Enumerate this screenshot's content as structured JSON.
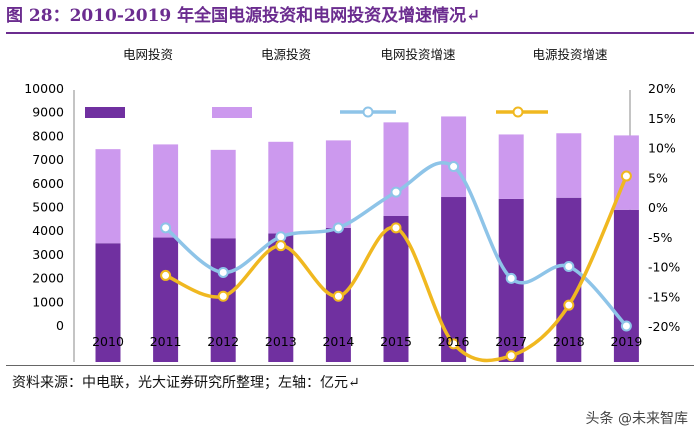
{
  "title": "图 28：2010-2019 年全国电源投资和电网投资及增速情况↵",
  "source": "资料来源：中电联，光大证券研究所整理；左轴：亿元↵",
  "watermark": "头条 @未来智库",
  "colors": {
    "grid_bar": "#7030a0",
    "power_bar": "#cc99ee",
    "grid_line": "#8ec4e8",
    "power_line": "#f0b820",
    "title": "#6b2c8f"
  },
  "chart_data": {
    "type": "bar",
    "categories": [
      "2010",
      "2011",
      "2012",
      "2013",
      "2014",
      "2015",
      "2016",
      "2017",
      "2018",
      "2019"
    ],
    "series": [
      {
        "name": "电网投资",
        "type": "bar",
        "axis": "left",
        "values": [
          3450,
          3690,
          3660,
          3860,
          4100,
          4600,
          5400,
          5320,
          5370,
          4860
        ]
      },
      {
        "name": "电源投资",
        "type": "bar",
        "axis": "left",
        "values": [
          3970,
          3930,
          3730,
          3870,
          3690,
          3950,
          3400,
          2720,
          2720,
          3140
        ]
      },
      {
        "name": "电网投资增速",
        "type": "line",
        "axis": "right",
        "values": [
          null,
          -3.5,
          -11,
          -5,
          -3.5,
          2.5,
          6.8,
          -12,
          -10,
          -20
        ]
      },
      {
        "name": "电源投资增速",
        "type": "line",
        "axis": "right",
        "values": [
          null,
          -11.5,
          -15,
          -6.5,
          -15,
          -3.5,
          -23,
          -25,
          -16.5,
          5.2
        ]
      }
    ],
    "left_axis": {
      "ticks": [
        "0",
        "1000",
        "2000",
        "3000",
        "4000",
        "5000",
        "6000",
        "7000",
        "8000",
        "9000",
        "10000"
      ],
      "range": [
        0,
        10000
      ]
    },
    "right_axis": {
      "ticks": [
        "-20%",
        "-15%",
        "-10%",
        "-5%",
        "0%",
        "5%",
        "10%",
        "15%",
        "20%"
      ],
      "range": [
        -20,
        20
      ]
    },
    "legend_position": "top"
  }
}
